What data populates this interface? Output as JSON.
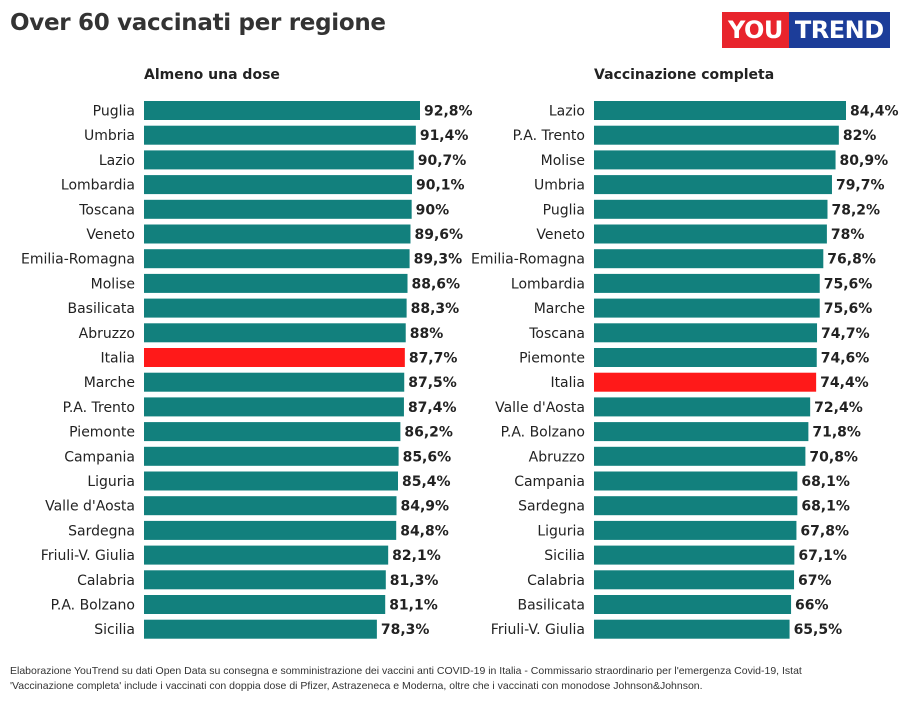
{
  "title": "Over 60 vaccinati per regione",
  "logo": {
    "part1": "YOU",
    "part2": "TREND"
  },
  "colors": {
    "bar": "#12807d",
    "highlight": "#ff1919"
  },
  "footnote": {
    "line1": "Elaborazione YouTrend su dati Open Data su consegna e somministrazione dei vaccini anti COVID-19 in Italia - Commissario straordinario per l'emergenza Covid-19, Istat",
    "line2": "'Vaccinazione completa' include i vaccinati con doppia dose di Pfizer, Astrazeneca e Moderna, oltre che i vaccinati con monodose Johnson&Johnson."
  },
  "chart_data": [
    {
      "type": "bar",
      "orientation": "horizontal",
      "title": "Almeno una dose",
      "highlight": "Italia",
      "categories": [
        "Puglia",
        "Umbria",
        "Lazio",
        "Lombardia",
        "Toscana",
        "Veneto",
        "Emilia-Romagna",
        "Molise",
        "Basilicata",
        "Abruzzo",
        "Italia",
        "Marche",
        "P.A. Trento",
        "Piemonte",
        "Campania",
        "Liguria",
        "Valle d'Aosta",
        "Sardegna",
        "Friuli-V. Giulia",
        "Calabria",
        "P.A. Bolzano",
        "Sicilia"
      ],
      "values": [
        92.8,
        91.4,
        90.7,
        90.1,
        90,
        89.6,
        89.3,
        88.6,
        88.3,
        88,
        87.7,
        87.5,
        87.4,
        86.2,
        85.6,
        85.4,
        84.9,
        84.8,
        82.1,
        81.3,
        81.1,
        78.3
      ],
      "labels": [
        "92,8%",
        "91,4%",
        "90,7%",
        "90,1%",
        "90%",
        "89,6%",
        "89,3%",
        "88,6%",
        "88,3%",
        "88%",
        "87,7%",
        "87,5%",
        "87,4%",
        "86,2%",
        "85,6%",
        "85,4%",
        "84,9%",
        "84,8%",
        "82,1%",
        "81,3%",
        "81,1%",
        "78,3%"
      ]
    },
    {
      "type": "bar",
      "orientation": "horizontal",
      "title": "Vaccinazione completa",
      "highlight": "Italia",
      "categories": [
        "Lazio",
        "P.A. Trento",
        "Molise",
        "Umbria",
        "Puglia",
        "Veneto",
        "Emilia-Romagna",
        "Lombardia",
        "Marche",
        "Toscana",
        "Piemonte",
        "Italia",
        "Valle d'Aosta",
        "P.A. Bolzano",
        "Abruzzo",
        "Campania",
        "Sardegna",
        "Liguria",
        "Sicilia",
        "Calabria",
        "Basilicata",
        "Friuli-V. Giulia"
      ],
      "values": [
        84.4,
        82,
        80.9,
        79.7,
        78.2,
        78,
        76.8,
        75.6,
        75.6,
        74.7,
        74.6,
        74.4,
        72.4,
        71.8,
        70.8,
        68.1,
        68.1,
        67.8,
        67.1,
        67,
        66,
        65.5
      ],
      "labels": [
        "84,4%",
        "82%",
        "80,9%",
        "79,7%",
        "78,2%",
        "78%",
        "76,8%",
        "75,6%",
        "75,6%",
        "74,7%",
        "74,6%",
        "74,4%",
        "72,4%",
        "71,8%",
        "70,8%",
        "68,1%",
        "68,1%",
        "67,8%",
        "67,1%",
        "67%",
        "66%",
        "65,5%"
      ]
    }
  ]
}
